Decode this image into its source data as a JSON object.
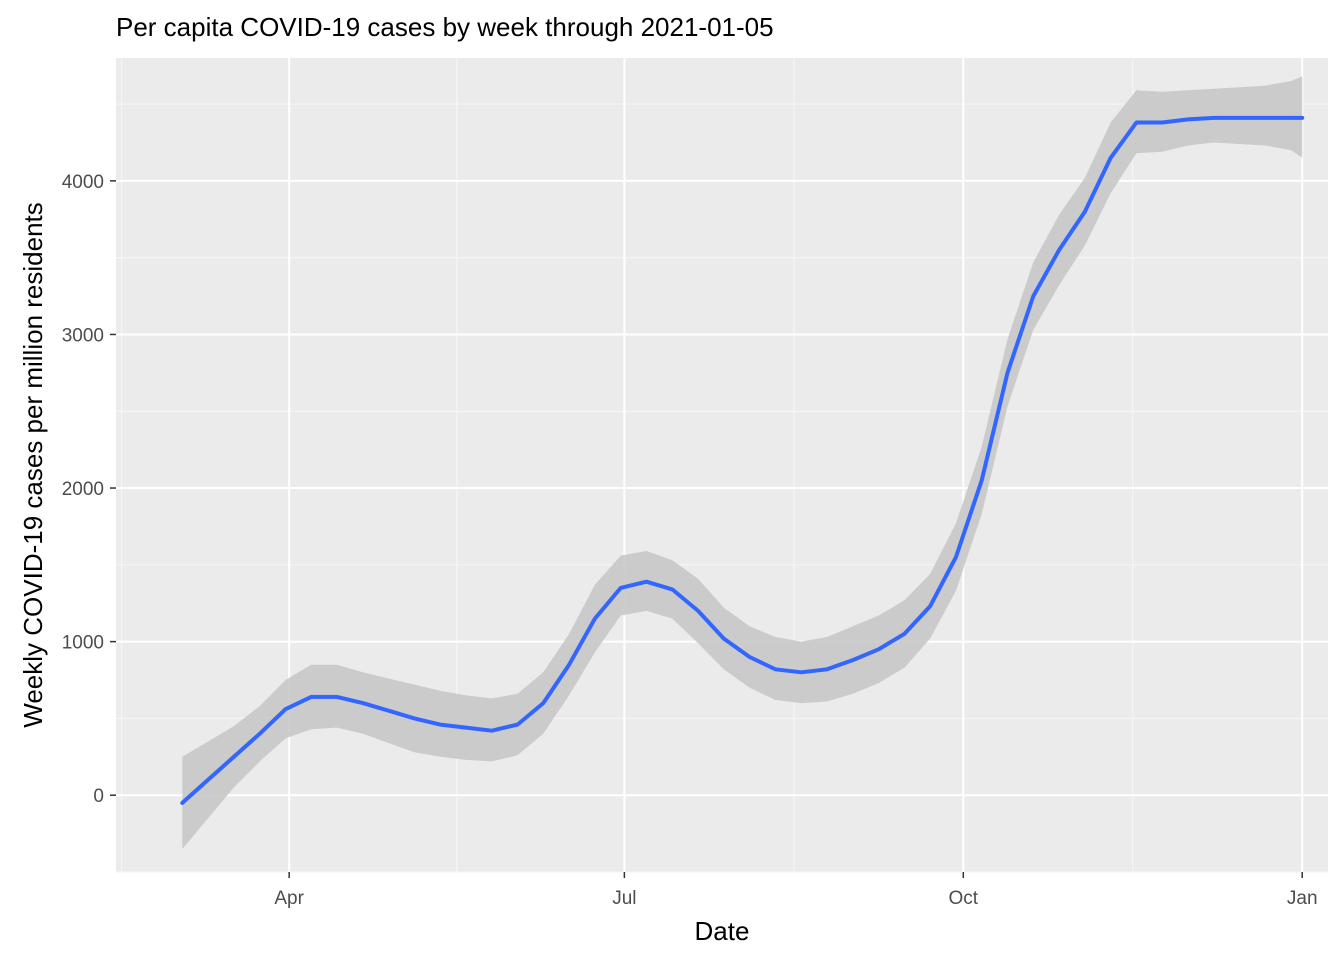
{
  "chart_data": {
    "type": "line",
    "title": "Per capita COVID-19 cases by week through 2021-01-05",
    "xlabel": "Date",
    "ylabel": "Weekly COVID-19 cases per million residents",
    "x_ticks": [
      {
        "date": "2020-04-01",
        "label": "Apr"
      },
      {
        "date": "2020-07-01",
        "label": "Jul"
      },
      {
        "date": "2020-10-01",
        "label": "Oct"
      },
      {
        "date": "2021-01-01",
        "label": "Jan"
      }
    ],
    "y_ticks": [
      0,
      1000,
      2000,
      3000,
      4000
    ],
    "xlim": [
      "2020-02-14",
      "2021-01-08"
    ],
    "ylim": [
      -500,
      4800
    ],
    "grid": true,
    "colors": {
      "panel_background": "#ebebeb",
      "grid_major": "#ffffff",
      "grid_minor": "#f5f5f5",
      "line": "#3366ff",
      "ribbon": "#c8c8c8"
    },
    "series": [
      {
        "x": [
          "2020-03-03",
          "2020-03-10",
          "2020-03-17",
          "2020-03-24",
          "2020-03-31",
          "2020-04-07",
          "2020-04-14",
          "2020-04-21",
          "2020-04-28",
          "2020-05-05",
          "2020-05-12",
          "2020-05-19",
          "2020-05-26",
          "2020-06-02",
          "2020-06-09",
          "2020-06-16",
          "2020-06-23",
          "2020-06-30",
          "2020-07-07",
          "2020-07-14",
          "2020-07-21",
          "2020-07-28",
          "2020-08-04",
          "2020-08-11",
          "2020-08-18",
          "2020-08-25",
          "2020-09-01",
          "2020-09-08",
          "2020-09-15",
          "2020-09-22",
          "2020-09-29",
          "2020-10-06",
          "2020-10-13",
          "2020-10-20",
          "2020-10-27",
          "2020-11-03",
          "2020-11-10",
          "2020-11-17",
          "2020-11-24",
          "2020-12-01",
          "2020-12-08",
          "2020-12-15",
          "2020-12-22",
          "2020-12-29",
          "2021-01-01"
        ],
        "values": [
          -50,
          100,
          250,
          400,
          560,
          640,
          640,
          600,
          550,
          500,
          460,
          440,
          420,
          460,
          600,
          850,
          1150,
          1350,
          1390,
          1340,
          1200,
          1020,
          900,
          820,
          800,
          820,
          880,
          950,
          1050,
          1230,
          1550,
          2050,
          2750,
          3250,
          3550,
          3800,
          4150,
          4380,
          4380,
          4400,
          4410,
          4410,
          4410,
          4410,
          4410
        ],
        "lower": [
          -350,
          -150,
          50,
          220,
          370,
          430,
          440,
          400,
          340,
          280,
          250,
          230,
          220,
          260,
          400,
          650,
          930,
          1170,
          1200,
          1150,
          990,
          820,
          700,
          620,
          600,
          610,
          660,
          730,
          830,
          1020,
          1330,
          1830,
          2530,
          3030,
          3320,
          3580,
          3920,
          4180,
          4190,
          4230,
          4250,
          4240,
          4230,
          4200,
          4150
        ],
        "upper": [
          250,
          350,
          450,
          580,
          750,
          850,
          850,
          800,
          760,
          720,
          680,
          650,
          630,
          660,
          800,
          1050,
          1370,
          1560,
          1590,
          1530,
          1410,
          1220,
          1100,
          1030,
          1000,
          1030,
          1100,
          1170,
          1270,
          1440,
          1770,
          2270,
          2970,
          3470,
          3780,
          4020,
          4380,
          4590,
          4580,
          4590,
          4600,
          4610,
          4620,
          4650,
          4680
        ]
      }
    ]
  }
}
